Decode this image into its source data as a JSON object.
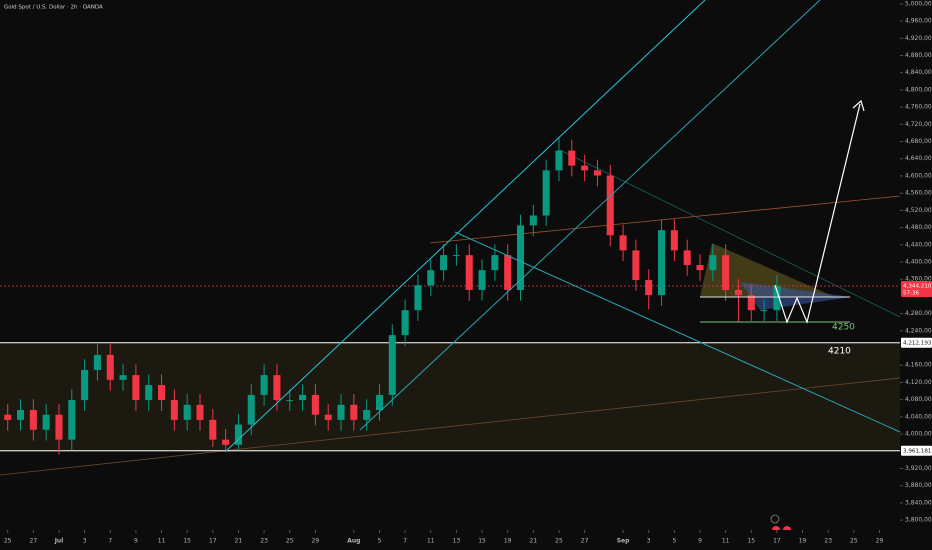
{
  "chart_data": {
    "type": "candlestick",
    "title": "Gold Spot / U.S. Dollar · 2h · OANDA",
    "x": [
      0,
      1,
      2,
      3,
      4,
      5,
      6,
      7,
      8,
      9,
      10,
      11,
      12,
      13,
      14,
      15,
      16,
      17,
      18,
      19,
      20,
      21,
      22,
      23,
      24,
      25,
      26,
      27,
      28,
      29,
      30,
      31,
      32,
      33,
      34,
      35,
      36,
      37,
      38,
      39,
      40,
      41,
      42,
      43,
      44,
      45,
      46,
      47,
      48,
      49,
      50,
      51,
      52,
      53,
      54,
      55,
      56,
      57,
      58,
      59,
      60
    ],
    "open": [
      4045000,
      4033000,
      4056000,
      4010000,
      4045000,
      3987000,
      4079000,
      4149000,
      4184000,
      4126000,
      4137000,
      4079000,
      4114000,
      4079000,
      4033000,
      4068000,
      4033000,
      3987000,
      3975000,
      4022000,
      4091000,
      4137000,
      4079000,
      4079000,
      4091000,
      4045000,
      4033000,
      4068000,
      4033000,
      4056000,
      4091000,
      4230000,
      4288000,
      4346000,
      4381000,
      4416000,
      4416000,
      4335000,
      4381000,
      4416000,
      4335000,
      4485000,
      4508000,
      4613000,
      4659000,
      4624000,
      4613000,
      4601000,
      4462000,
      4427000,
      4358000,
      4323000,
      4474000,
      4427000,
      4393000,
      4381000,
      4416000,
      4335000,
      4323000,
      4288000,
      4288000
    ],
    "high": [
      4070000,
      4081000,
      4081000,
      4070000,
      4070000,
      4104000,
      4174000,
      4209000,
      4209000,
      4162000,
      4162000,
      4139000,
      4139000,
      4104000,
      4093000,
      4093000,
      4058000,
      4012000,
      4047000,
      4116000,
      4162000,
      4162000,
      4104000,
      4116000,
      4116000,
      4070000,
      4093000,
      4093000,
      4081000,
      4116000,
      4255000,
      4313000,
      4371000,
      4406000,
      4441000,
      4441000,
      4441000,
      4406000,
      4441000,
      4441000,
      4510000,
      4533000,
      4638000,
      4690000,
      4684000,
      4649000,
      4638000,
      4626000,
      4487000,
      4452000,
      4383000,
      4499000,
      4499000,
      4452000,
      4418000,
      4441000,
      4441000,
      4360000,
      4348000,
      4313000,
      4369000
    ],
    "low": [
      4008000,
      4008000,
      3985000,
      3985000,
      3952000,
      3962000,
      4054000,
      4124000,
      4101000,
      4101000,
      4054000,
      4054000,
      4054000,
      4008000,
      4008000,
      4008000,
      3970000,
      3961181,
      3965000,
      3997000,
      4066000,
      4054000,
      4054000,
      4054000,
      4020000,
      4008000,
      4008000,
      4008000,
      4008000,
      4031000,
      4066000,
      4205000,
      4263000,
      4321000,
      4356000,
      4391000,
      4310000,
      4310000,
      4356000,
      4310000,
      4310000,
      4460000,
      4483000,
      4588000,
      4599000,
      4588000,
      4576000,
      4437000,
      4402000,
      4333000,
      4290000,
      4298000,
      4402000,
      4368000,
      4356000,
      4356000,
      4310000,
      4262000,
      4263000,
      4263000,
      4263000
    ],
    "close": [
      4033000,
      4056000,
      4010000,
      4045000,
      3987000,
      4079000,
      4149000,
      4184000,
      4126000,
      4137000,
      4079000,
      4114000,
      4079000,
      4033000,
      4068000,
      4033000,
      3987000,
      3975000,
      4022000,
      4091000,
      4137000,
      4079000,
      4079000,
      4091000,
      4045000,
      4033000,
      4068000,
      4033000,
      4056000,
      4091000,
      4230000,
      4288000,
      4346000,
      4381000,
      4416000,
      4416000,
      4335000,
      4381000,
      4416000,
      4335000,
      4485000,
      4508000,
      4613000,
      4659000,
      4624000,
      4613000,
      4601000,
      4462000,
      4427000,
      4358000,
      4323000,
      4474000,
      4427000,
      4393000,
      4381000,
      4416000,
      4335000,
      4323000,
      4288000,
      4288000,
      4344210
    ],
    "up_color": "#089981",
    "down_color": "#f23645",
    "xlim": [
      -0.6,
      69.6
    ],
    "ylim": [
      3777000,
      5009000
    ],
    "xticks": [
      {
        "value": 0,
        "label": "25"
      },
      {
        "value": 2,
        "label": "27"
      },
      {
        "value": 4,
        "label": "Jul"
      },
      {
        "value": 6,
        "label": "3"
      },
      {
        "value": 8,
        "label": "7"
      },
      {
        "value": 10,
        "label": "9"
      },
      {
        "value": 12,
        "label": "11"
      },
      {
        "value": 14,
        "label": "15"
      },
      {
        "value": 16,
        "label": "17"
      },
      {
        "value": 18,
        "label": "21"
      },
      {
        "value": 20,
        "label": "23"
      },
      {
        "value": 22,
        "label": "25"
      },
      {
        "value": 24,
        "label": "29"
      },
      {
        "value": 27,
        "label": "Aug"
      },
      {
        "value": 29,
        "label": "5"
      },
      {
        "value": 31,
        "label": "7"
      },
      {
        "value": 33,
        "label": "11"
      },
      {
        "value": 35,
        "label": "13"
      },
      {
        "value": 37,
        "label": "15"
      },
      {
        "value": 39,
        "label": "19"
      },
      {
        "value": 41,
        "label": "21"
      },
      {
        "value": 43,
        "label": "25"
      },
      {
        "value": 45,
        "label": "27"
      },
      {
        "value": 48,
        "label": "Sep"
      },
      {
        "value": 50,
        "label": "3"
      },
      {
        "value": 52,
        "label": "5"
      },
      {
        "value": 54,
        "label": "9"
      },
      {
        "value": 56,
        "label": "11"
      },
      {
        "value": 58,
        "label": "15"
      },
      {
        "value": 60,
        "label": "17"
      },
      {
        "value": 62,
        "label": "19"
      },
      {
        "value": 64,
        "label": "23"
      },
      {
        "value": 66,
        "label": "25"
      },
      {
        "value": 68,
        "label": "29"
      }
    ],
    "yticks": [
      {
        "value": 5000000,
        "label": "5,000,000"
      },
      {
        "value": 4960000,
        "label": "4,960,000"
      },
      {
        "value": 4920000,
        "label": "4,920,000"
      },
      {
        "value": 4880000,
        "label": "4,880,000"
      },
      {
        "value": 4840000,
        "label": "4,840,000"
      },
      {
        "value": 4800000,
        "label": "4,800,000"
      },
      {
        "value": 4760000,
        "label": "4,760,000"
      },
      {
        "value": 4720000,
        "label": "4,720,000"
      },
      {
        "value": 4680000,
        "label": "4,680,000"
      },
      {
        "value": 4640000,
        "label": "4,640,000"
      },
      {
        "value": 4600000,
        "label": "4,600,000"
      },
      {
        "value": 4560000,
        "label": "4,560,000"
      },
      {
        "value": 4520000,
        "label": "4,520,000"
      },
      {
        "value": 4480000,
        "label": "4,480,000"
      },
      {
        "value": 4440000,
        "label": "4,440,000"
      },
      {
        "value": 4400000,
        "label": "4,400,000"
      },
      {
        "value": 4360000,
        "label": "4,360,000"
      },
      {
        "value": 4280000,
        "label": "4,280,000"
      },
      {
        "value": 4240000,
        "label": "4,240,000"
      },
      {
        "value": 4160000,
        "label": "4,160,000"
      },
      {
        "value": 4120000,
        "label": "4,120,000"
      },
      {
        "value": 4080000,
        "label": "4,080,000"
      },
      {
        "value": 4040000,
        "label": "4,040,000"
      },
      {
        "value": 4000000,
        "label": "4,000,000"
      },
      {
        "value": 3920000,
        "label": "3,920,000"
      },
      {
        "value": 3880000,
        "label": "3,880,000"
      },
      {
        "value": 3840000,
        "label": "3,840,000"
      },
      {
        "value": 3800000,
        "label": "3,800,000"
      }
    ],
    "price_labels": [
      {
        "value": 4344210,
        "label": "4,344,210",
        "color": "#f23645"
      },
      {
        "value": 4212193,
        "label": "4,212,193",
        "color": "#ffffff"
      },
      {
        "value": 3961181,
        "label": "3,961,181",
        "color": "#ffffff"
      }
    ],
    "countdown": "57:36",
    "annotations": [
      "4250",
      "4210"
    ]
  }
}
